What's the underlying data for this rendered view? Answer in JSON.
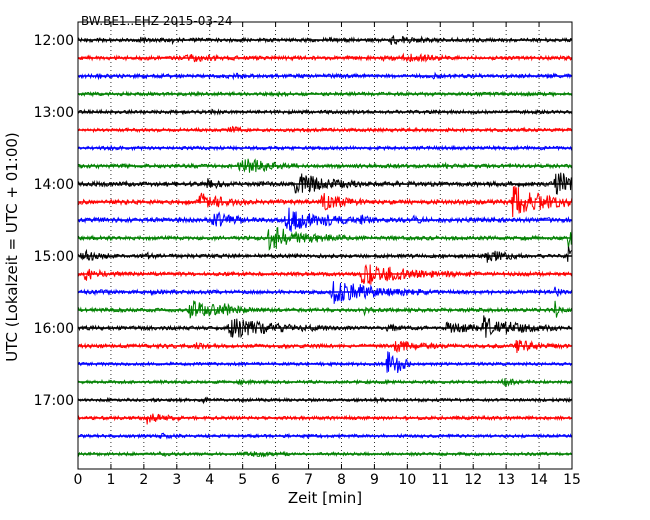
{
  "chart_data": {
    "type": "line",
    "subtype": "dayplot-seismogram",
    "title": "BW.BE1..EHZ 2015-03-24",
    "xlabel": "Zeit  [min]",
    "ylabel": "UTC (Lokalzeit = UTC + 01:00)",
    "xlim": [
      0,
      15
    ],
    "x_ticks": [
      "0",
      "1",
      "2",
      "3",
      "4",
      "5",
      "6",
      "7",
      "8",
      "9",
      "10",
      "11",
      "12",
      "13",
      "14",
      "15"
    ],
    "y_ticks": [
      "12:00",
      "13:00",
      "14:00",
      "15:00",
      "16:00",
      "17:00"
    ],
    "grid": "vertical-dotted",
    "traces_per_hour": 4,
    "minutes_per_trace": 15,
    "trace_colors": [
      "#000000",
      "#ff0000",
      "#0000ff",
      "#008000"
    ],
    "traces": [
      {
        "start": "12:00",
        "noise": 1.0,
        "events": [
          [
            1.9,
            1.0,
            0.2
          ],
          [
            2.8,
            1.2,
            0.2
          ],
          [
            7.6,
            0.8,
            0.15
          ],
          [
            9.5,
            2.0,
            0.45
          ],
          [
            10.4,
            0.6,
            0.2
          ]
        ]
      },
      {
        "start": "12:15",
        "noise": 1.0,
        "events": [
          [
            3.3,
            1.5,
            0.7
          ],
          [
            9.2,
            0.8,
            0.25
          ],
          [
            9.9,
            2.0,
            0.6
          ]
        ]
      },
      {
        "start": "12:30",
        "noise": 1.0,
        "events": [
          [
            0.6,
            0.8,
            0.15
          ],
          [
            4.6,
            1.0,
            0.3
          ],
          [
            10.8,
            0.6,
            0.2
          ],
          [
            14.2,
            0.5,
            0.2
          ]
        ]
      },
      {
        "start": "12:45",
        "noise": 0.9,
        "events": [
          [
            6.1,
            0.5,
            0.2
          ]
        ]
      },
      {
        "start": "13:00",
        "noise": 0.9,
        "events": [
          [
            4.0,
            1.2,
            0.15
          ]
        ]
      },
      {
        "start": "13:15",
        "noise": 0.9,
        "events": [
          [
            4.6,
            2.0,
            0.2
          ],
          [
            7.0,
            0.6,
            0.2
          ]
        ]
      },
      {
        "start": "13:30",
        "noise": 0.9,
        "events": [
          [
            0.8,
            0.6,
            0.2
          ]
        ]
      },
      {
        "start": "13:45",
        "noise": 1.0,
        "events": [
          [
            4.9,
            5.0,
            0.7
          ],
          [
            11.1,
            1.0,
            0.15
          ]
        ]
      },
      {
        "start": "14:00",
        "noise": 1.2,
        "events": [
          [
            3.9,
            2.5,
            0.3
          ],
          [
            6.6,
            6.0,
            0.8
          ],
          [
            9.7,
            1.0,
            0.2
          ],
          [
            14.5,
            6.0,
            0.8
          ]
        ]
      },
      {
        "start": "14:15",
        "noise": 1.2,
        "events": [
          [
            3.7,
            4.0,
            0.6
          ],
          [
            7.4,
            5.0,
            0.5
          ],
          [
            13.2,
            8.0,
            1.0
          ]
        ]
      },
      {
        "start": "14:30",
        "noise": 1.2,
        "events": [
          [
            4.1,
            4.0,
            0.5
          ],
          [
            6.3,
            6.0,
            1.0
          ],
          [
            8.6,
            2.0,
            0.3
          ],
          [
            10.2,
            1.2,
            0.2
          ]
        ]
      },
      {
        "start": "14:45",
        "noise": 1.0,
        "events": [
          [
            5.8,
            6.0,
            1.0
          ],
          [
            14.9,
            6.0,
            0.5
          ]
        ]
      },
      {
        "start": "15:00",
        "noise": 1.0,
        "events": [
          [
            0.1,
            3.0,
            0.4
          ],
          [
            2.1,
            1.0,
            0.15
          ],
          [
            12.4,
            3.0,
            0.5
          ],
          [
            14.9,
            5.0,
            0.5
          ]
        ]
      },
      {
        "start": "15:15",
        "noise": 1.0,
        "events": [
          [
            0.2,
            3.0,
            0.4
          ],
          [
            8.6,
            6.0,
            1.2
          ],
          [
            11.8,
            0.8,
            0.2
          ]
        ]
      },
      {
        "start": "15:30",
        "noise": 1.0,
        "events": [
          [
            0.5,
            0.6,
            0.2
          ],
          [
            2.2,
            0.5,
            0.2
          ],
          [
            7.7,
            6.0,
            1.2
          ],
          [
            8.6,
            3.0,
            0.15
          ],
          [
            14.5,
            3.0,
            0.1
          ]
        ]
      },
      {
        "start": "15:45",
        "noise": 1.0,
        "events": [
          [
            3.4,
            5.0,
            0.8
          ],
          [
            4.4,
            2.0,
            0.3
          ],
          [
            8.7,
            2.0,
            0.15
          ],
          [
            14.5,
            6.0,
            0.1
          ]
        ]
      },
      {
        "start": "16:00",
        "noise": 1.0,
        "events": [
          [
            4.6,
            5.0,
            1.2
          ],
          [
            9.4,
            2.0,
            0.2
          ],
          [
            11.2,
            2.5,
            1.0
          ],
          [
            12.3,
            5.0,
            0.9
          ]
        ]
      },
      {
        "start": "16:15",
        "noise": 1.0,
        "events": [
          [
            2.7,
            0.8,
            0.15
          ],
          [
            3.6,
            1.2,
            0.2
          ],
          [
            9.6,
            3.0,
            0.6
          ],
          [
            13.3,
            3.0,
            0.6
          ]
        ]
      },
      {
        "start": "16:30",
        "noise": 0.8,
        "events": [
          [
            9.4,
            8.0,
            0.3
          ],
          [
            9.6,
            2.0,
            0.2
          ]
        ]
      },
      {
        "start": "16:45",
        "noise": 0.8,
        "events": [
          [
            4.9,
            1.0,
            0.2
          ],
          [
            12.9,
            2.0,
            0.4
          ]
        ]
      },
      {
        "start": "17:00",
        "noise": 0.8,
        "events": [
          [
            3.8,
            1.0,
            0.15
          ],
          [
            9.0,
            0.6,
            0.2
          ]
        ]
      },
      {
        "start": "17:15",
        "noise": 0.9,
        "events": [
          [
            2.1,
            2.5,
            0.5
          ]
        ]
      },
      {
        "start": "17:30",
        "noise": 0.8,
        "events": [
          [
            2.5,
            1.2,
            0.3
          ]
        ]
      },
      {
        "start": "17:45",
        "noise": 0.8,
        "events": [
          [
            2.5,
            0.8,
            0.2
          ],
          [
            5.1,
            1.0,
            0.6
          ]
        ]
      }
    ]
  }
}
